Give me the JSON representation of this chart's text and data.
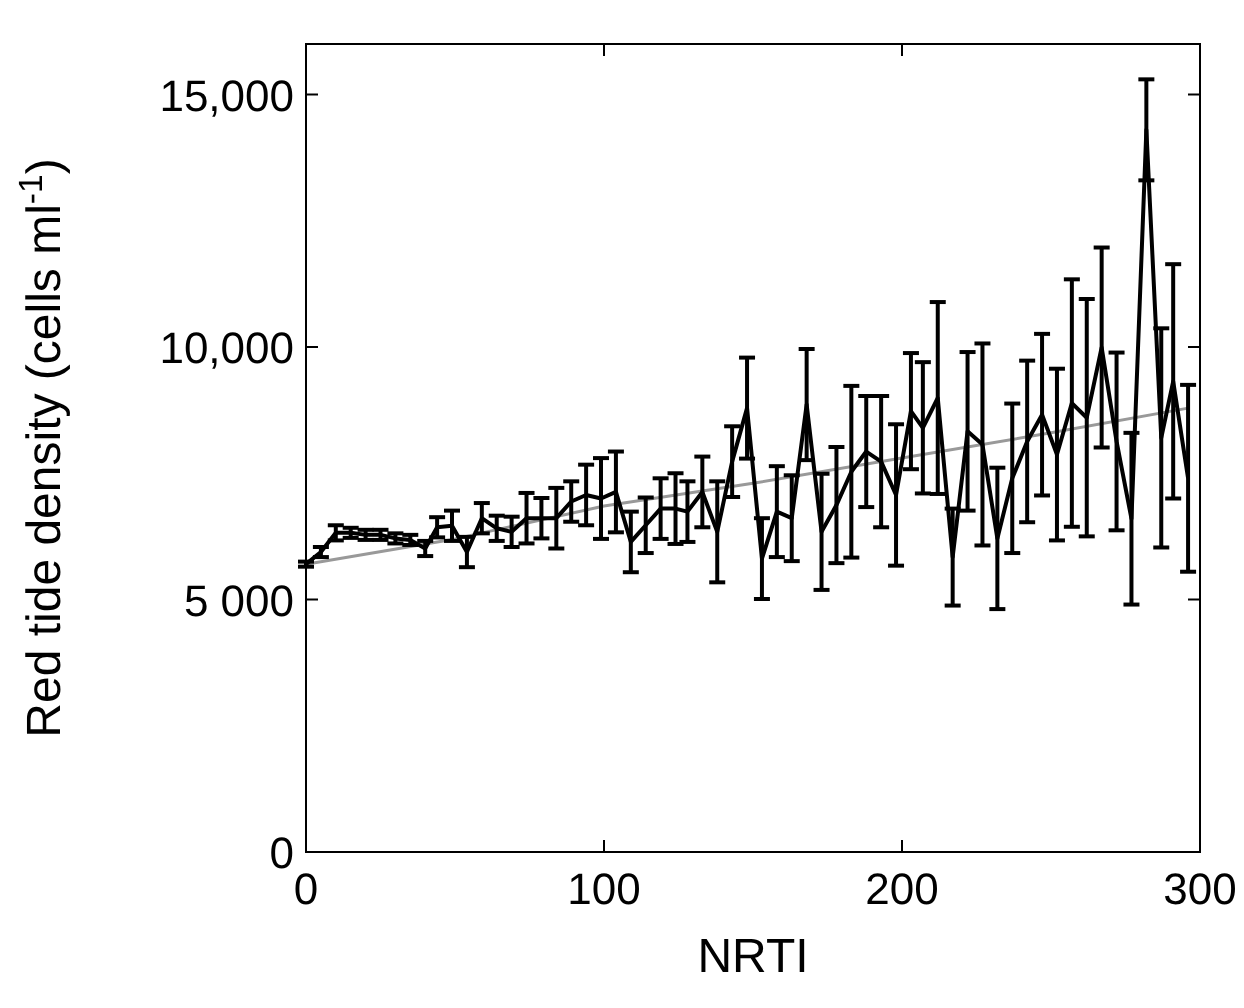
{
  "chart_data": {
    "type": "line",
    "xlabel": "NRTI",
    "ylabel": "Red tide density (cells ml$^{-1}$)",
    "xlim": [
      0,
      300
    ],
    "xticks": [
      0,
      100,
      200,
      300
    ],
    "ylim": [
      0,
      16000
    ],
    "yticks": [
      0,
      {
        "value": 5000,
        "label": "5 000"
      },
      {
        "value": 10000,
        "label": "10,000"
      },
      {
        "value": 15000,
        "label": "15,000"
      }
    ],
    "grid": false,
    "marker": "none",
    "line_style": "solid",
    "series": [
      {
        "color": "#000000",
        "x": [
          0,
          5,
          10,
          15,
          20,
          25,
          30,
          35,
          40,
          44,
          49,
          54,
          59,
          64,
          69,
          74,
          79,
          84,
          89,
          94,
          99,
          104,
          109,
          114,
          119,
          124,
          128,
          133,
          138,
          143,
          148,
          153,
          158,
          163,
          168,
          173,
          178,
          183,
          188,
          193,
          198,
          203,
          207,
          212,
          217,
          222,
          227,
          232,
          237,
          242,
          247,
          252,
          257,
          262,
          267,
          272,
          277,
          282,
          287,
          291,
          296
        ],
        "values": [
          5700,
          5940,
          6320,
          6320,
          6280,
          6280,
          6210,
          6180,
          6010,
          6430,
          6460,
          5940,
          6610,
          6410,
          6340,
          6610,
          6610,
          6610,
          6940,
          7070,
          7000,
          7130,
          6140,
          6470,
          6800,
          6800,
          6740,
          7130,
          6340,
          7730,
          8790,
          5810,
          6740,
          6610,
          8860,
          6340,
          6870,
          7530,
          7930,
          7730,
          7070,
          8730,
          8400,
          8990,
          5840,
          8330,
          8070,
          6210,
          7400,
          8130,
          8660,
          7870,
          8890,
          8600,
          9990,
          8130,
          6600,
          14300,
          8200,
          9320,
          7400
        ],
        "errors": [
          50,
          100,
          150,
          100,
          100,
          100,
          100,
          100,
          150,
          200,
          300,
          300,
          300,
          250,
          300,
          500,
          400,
          600,
          400,
          600,
          800,
          800,
          600,
          550,
          600,
          700,
          600,
          700,
          1000,
          700,
          1000,
          800,
          900,
          850,
          1100,
          1150,
          1150,
          1700,
          1100,
          1300,
          1400,
          1150,
          1300,
          1900,
          960,
          1570,
          2000,
          1400,
          1480,
          1600,
          1600,
          1700,
          2450,
          2350,
          1980,
          1760,
          1700,
          1000,
          2170,
          2320,
          1850
        ]
      },
      {
        "type": "line",
        "color": "#999999",
        "x": [
          0,
          50,
          100,
          150,
          200,
          250,
          296
        ],
        "values": [
          5700,
          6200,
          6850,
          7300,
          7800,
          8300,
          8790
        ]
      }
    ]
  }
}
